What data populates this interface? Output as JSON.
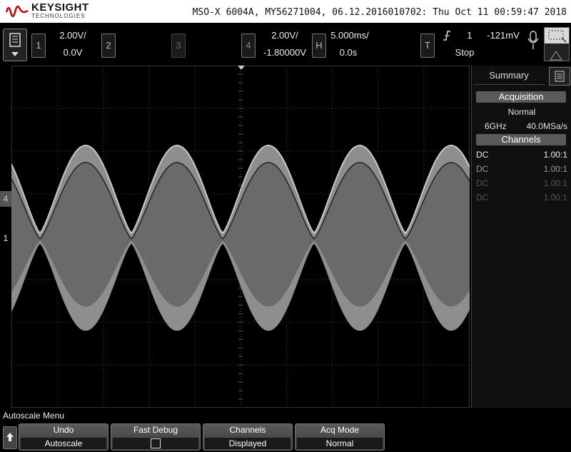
{
  "header": {
    "brand": "KEYSIGHT",
    "brand_sub": "TECHNOLOGIES",
    "device_info": "MSO-X 6004A, MY56271004, 06.12.2016010702: Thu Oct 11 00:59:47 2018"
  },
  "channels": {
    "ch1": {
      "label": "1",
      "scale": "2.00V/",
      "offset": "0.0V"
    },
    "ch2": {
      "label": "2"
    },
    "ch3": {
      "label": "3"
    },
    "ch4": {
      "label": "4",
      "scale": "2.00V/",
      "offset": "-1.80000V"
    }
  },
  "horizontal": {
    "label": "H",
    "scale": "5.000ms/",
    "delay": "0.0s"
  },
  "trigger": {
    "label": "T",
    "source": "1",
    "level": "-121mV",
    "state": "Stop"
  },
  "summary": {
    "title": "Summary",
    "acquisition_head": "Acquisition",
    "mode": "Normal",
    "bandwidth": "6GHz",
    "sample_rate": "40.0MSa/s",
    "channels_head": "Channels",
    "rows": [
      {
        "coupling": "DC",
        "probe": "1.00:1"
      },
      {
        "coupling": "DC",
        "probe": "1.00:1"
      },
      {
        "coupling": "DC",
        "probe": "1.00:1"
      },
      {
        "coupling": "DC",
        "probe": "1.00:1"
      }
    ]
  },
  "softkeys": {
    "menu_title": "Autoscale Menu",
    "undo_title": "Undo",
    "undo_value": "Autoscale",
    "fast_debug_title": "Fast Debug",
    "channels_title": "Channels",
    "channels_value": "Displayed",
    "acq_title": "Acq Mode",
    "acq_value": "Normal"
  },
  "markers": {
    "ch4": "4",
    "ch1": "1"
  },
  "colors": {
    "grid": "#555555",
    "trace_light": "#9a9a9a",
    "trace_dark": "#666666",
    "panel_head": "#5a5a5a"
  }
}
